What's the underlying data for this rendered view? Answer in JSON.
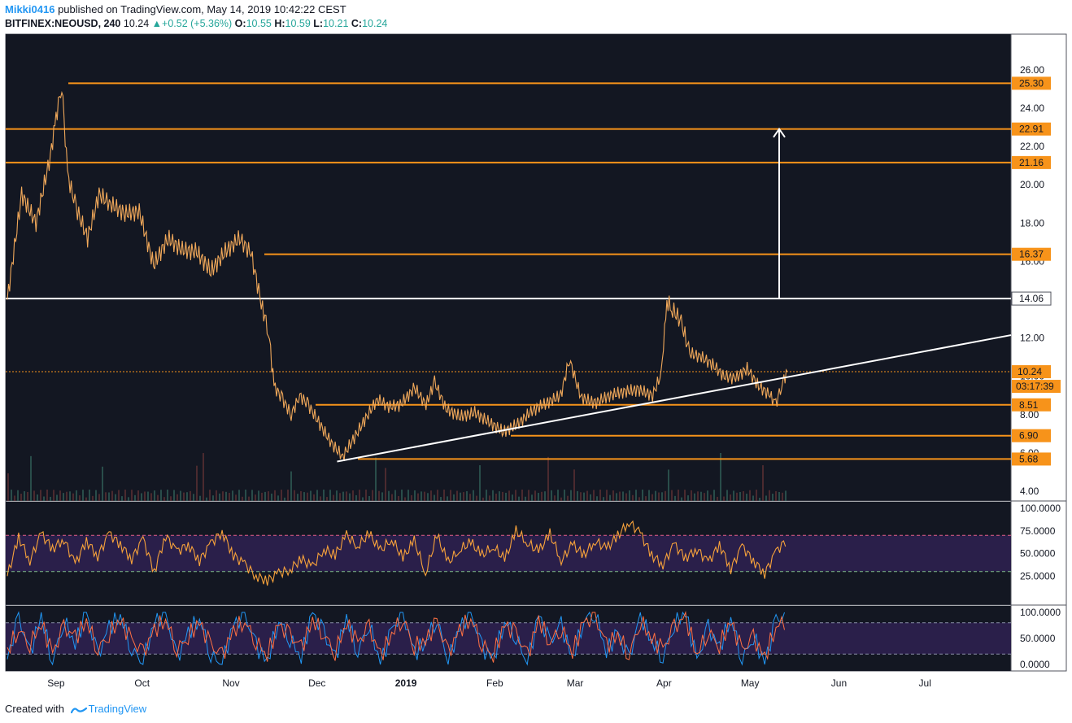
{
  "header": {
    "user": "Mikki0416",
    "published": "published on TradingView.com, May 14, 2019 10:42:22 CEST",
    "symbol": "BITFINEX:NEOUSD, 240",
    "last": "10.24",
    "change": "+0.52 (+5.36%)",
    "o_label": "O:",
    "o_value": "10.55",
    "h_label": "H:",
    "h_value": "10.59",
    "l_label": "L:",
    "l_value": "10.21",
    "c_label": "C:",
    "c_value": "10.24"
  },
  "footer": {
    "created_with": "Created with",
    "brand": "TradingView"
  },
  "colors": {
    "background": "#131722",
    "candle": "#f0a85a",
    "level": "#f7931a",
    "trend": "#ffffff",
    "rsi": "#f7a23b",
    "stoch_k": "#2196f3",
    "stoch_d": "#ff7043",
    "band": "#2a1f4a"
  },
  "chart_data": [
    {
      "type": "line",
      "panel": "price",
      "symbol": "BITFINEX:NEOUSD",
      "timeframe": "240",
      "x_labels": [
        "Sep",
        "Oct",
        "Nov",
        "Dec",
        "2019",
        "Feb",
        "Mar",
        "Apr",
        "May",
        "Jun",
        "Jul"
      ],
      "y_ticks": [
        "26.00",
        "24.00",
        "22.00",
        "20.00",
        "18.00",
        "16.00",
        "12.00",
        "10.00",
        "8.00",
        "6.00",
        "4.00"
      ],
      "ylim": [
        4,
        26
      ],
      "horizontal_levels": [
        {
          "label": "25.30",
          "value": 25.3
        },
        {
          "label": "22.91",
          "value": 22.91
        },
        {
          "label": "21.16",
          "value": 21.16
        },
        {
          "label": "16.37",
          "value": 16.37
        },
        {
          "label": "14.06",
          "value": 14.06
        },
        {
          "label": "8.51",
          "value": 8.51
        },
        {
          "label": "6.90",
          "value": 6.9
        },
        {
          "label": "5.68",
          "value": 5.68
        }
      ],
      "last_price": {
        "label": "10.24",
        "value": 10.24,
        "countdown": "03:17:39"
      },
      "series": [
        {
          "x": [
            "2018-08-15",
            "2018-08-20",
            "2018-08-25",
            "2018-08-30",
            "2018-09-01",
            "2018-09-03",
            "2018-09-05",
            "2018-09-08",
            "2018-09-12",
            "2018-09-16",
            "2018-09-20",
            "2018-09-25",
            "2018-09-30",
            "2018-10-05",
            "2018-10-10",
            "2018-10-15",
            "2018-10-20",
            "2018-10-25",
            "2018-10-30",
            "2018-11-04",
            "2018-11-08",
            "2018-11-12",
            "2018-11-14",
            "2018-11-16",
            "2018-11-19",
            "2018-11-22",
            "2018-11-25",
            "2018-11-28",
            "2018-12-02",
            "2018-12-06",
            "2018-12-10",
            "2018-12-14",
            "2018-12-18",
            "2018-12-22",
            "2018-12-26",
            "2018-12-30",
            "2019-01-04",
            "2019-01-08",
            "2019-01-11",
            "2019-01-15",
            "2019-01-20",
            "2019-01-25",
            "2019-01-30",
            "2019-02-04",
            "2019-02-09",
            "2019-02-14",
            "2019-02-19",
            "2019-02-24",
            "2019-02-27",
            "2019-03-03",
            "2019-03-08",
            "2019-03-13",
            "2019-03-18",
            "2019-03-23",
            "2019-03-28",
            "2019-03-31",
            "2019-04-02",
            "2019-04-04",
            "2019-04-07",
            "2019-04-10",
            "2019-04-14",
            "2019-04-18",
            "2019-04-22",
            "2019-04-26",
            "2019-04-30",
            "2019-05-04",
            "2019-05-08",
            "2019-05-10",
            "2019-05-12",
            "2019-05-14"
          ],
          "values": [
            14.0,
            19.5,
            18.0,
            21.5,
            23.5,
            25.3,
            20.5,
            18.8,
            17.2,
            19.5,
            19.0,
            18.5,
            18.6,
            15.8,
            17.2,
            16.6,
            16.5,
            15.5,
            16.5,
            17.2,
            16.4,
            13.5,
            12.5,
            9.5,
            8.8,
            8.0,
            9.0,
            8.5,
            7.5,
            6.5,
            5.8,
            6.8,
            7.8,
            8.8,
            8.4,
            8.5,
            9.4,
            8.5,
            9.7,
            8.3,
            7.9,
            8.1,
            7.6,
            7.1,
            7.5,
            8.2,
            8.6,
            9.0,
            10.9,
            8.9,
            8.6,
            9.0,
            9.2,
            9.3,
            9.0,
            10.1,
            13.9,
            13.5,
            12.8,
            11.2,
            11.0,
            10.6,
            10.0,
            9.9,
            10.4,
            9.5,
            9.0,
            8.5,
            9.6,
            10.24
          ]
        }
      ],
      "trendline": {
        "from": {
          "x": "2018-12-08",
          "y": 5.55
        },
        "to": {
          "x": "2019-07-31",
          "y": 12.15
        }
      },
      "projection_arrow": {
        "from": 14.06,
        "to": 22.91
      }
    },
    {
      "type": "line",
      "panel": "rsi",
      "y_ticks": [
        "100.0000",
        "75.0000",
        "50.0000",
        "25.0000"
      ],
      "ylim": [
        0,
        100
      ],
      "bands": [
        70,
        30
      ],
      "series": [
        {
          "values": [
            25,
            68,
            42,
            72,
            55,
            66,
            38,
            64,
            47,
            72,
            60,
            44,
            66,
            30,
            70,
            52,
            60,
            42,
            61,
            74,
            48,
            38,
            25,
            20,
            28,
            32,
            44,
            35,
            55,
            48,
            70,
            58,
            72,
            53,
            66,
            45,
            64,
            28,
            70,
            40,
            54,
            62,
            48,
            58,
            43,
            75,
            62,
            52,
            72,
            42,
            60,
            48,
            64,
            55,
            70,
            85,
            72,
            48,
            38,
            60,
            45,
            55,
            40,
            60,
            33,
            58,
            42,
            28,
            52,
            66
          ]
        }
      ]
    },
    {
      "type": "line",
      "panel": "stoch_rsi",
      "y_ticks": [
        "100.0000",
        "50.0000",
        "0.0000"
      ],
      "ylim": [
        0,
        100
      ],
      "bands": [
        80,
        20
      ],
      "series": [
        {
          "name": "K",
          "values": [
            10,
            90,
            20,
            95,
            5,
            85,
            40,
            100,
            15,
            70,
            95,
            30,
            5,
            80,
            100,
            10,
            60,
            90,
            20,
            0,
            75,
            95,
            35,
            5,
            88,
            50,
            15,
            98,
            60,
            10,
            92,
            25,
            80,
            0,
            65,
            100,
            20,
            45,
            90,
            5,
            70,
            100,
            30,
            10,
            85,
            55,
            0,
            95,
            40,
            75,
            12,
            88,
            100,
            25,
            60,
            8,
            96,
            45,
            15,
            80,
            100,
            5,
            70,
            30,
            92,
            10,
            55,
            0,
            85,
            90
          ]
        },
        {
          "name": "D",
          "values": [
            25,
            70,
            40,
            80,
            20,
            70,
            50,
            85,
            30,
            60,
            85,
            45,
            20,
            65,
            88,
            30,
            55,
            80,
            35,
            15,
            65,
            85,
            45,
            20,
            75,
            55,
            30,
            85,
            60,
            25,
            80,
            40,
            70,
            15,
            60,
            90,
            35,
            45,
            80,
            20,
            65,
            90,
            40,
            20,
            75,
            58,
            15,
            85,
            45,
            70,
            25,
            80,
            90,
            35,
            58,
            20,
            85,
            50,
            28,
            70,
            90,
            20,
            65,
            38,
            82,
            25,
            50,
            12,
            75,
            85
          ]
        }
      ]
    }
  ]
}
